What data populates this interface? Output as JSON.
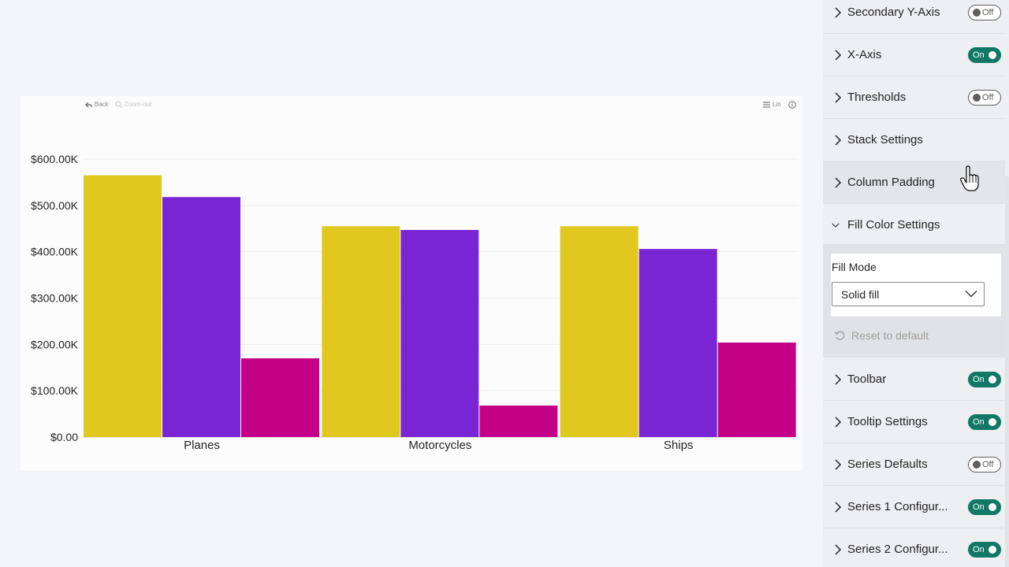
{
  "toolbar": {
    "back_label": "Back",
    "zoom_out_label": "Zoom-out",
    "scale_label": "Lin"
  },
  "chart_data": {
    "type": "bar",
    "categories": [
      "Planes",
      "Motorcycles",
      "Ships"
    ],
    "series": [
      {
        "values": [
          565000,
          455000,
          455000
        ],
        "color": "#e0c81e"
      },
      {
        "values": [
          518000,
          447000,
          406000
        ],
        "color": "#7a25d4"
      },
      {
        "values": [
          170000,
          68000,
          204000
        ],
        "color": "#c40086"
      }
    ],
    "ylim": [
      0,
      600000
    ],
    "yticks": [
      0,
      100000,
      200000,
      300000,
      400000,
      500000,
      600000
    ],
    "ytick_labels": [
      "$0.00",
      "$100.00K",
      "$200.00K",
      "$300.00K",
      "$400.00K",
      "$500.00K",
      "$600.00K"
    ],
    "grid": true,
    "title": "",
    "xlabel": "",
    "ylabel": ""
  },
  "panel": {
    "items": [
      {
        "label": "Secondary Y-Axis",
        "toggle": "Off"
      },
      {
        "label": "X-Axis",
        "toggle": "On"
      },
      {
        "label": "Thresholds",
        "toggle": "Off"
      },
      {
        "label": "Stack Settings",
        "toggle": null
      },
      {
        "label": "Column Padding",
        "toggle": null
      },
      {
        "label": "Fill Color Settings",
        "toggle": null,
        "expanded": true
      },
      {
        "label": "Toolbar",
        "toggle": "On"
      },
      {
        "label": "Tooltip Settings",
        "toggle": "On"
      },
      {
        "label": "Series Defaults",
        "toggle": "Off"
      },
      {
        "label": "Series 1 Configur...",
        "toggle": "On"
      },
      {
        "label": "Series 2 Configur...",
        "toggle": "On"
      }
    ],
    "fill": {
      "mode_label": "Fill Mode",
      "mode_value": "Solid fill",
      "reset_label": "Reset to default"
    }
  },
  "colors": {
    "accent_on": "#117865",
    "panel_bg": "#eeeff2"
  }
}
